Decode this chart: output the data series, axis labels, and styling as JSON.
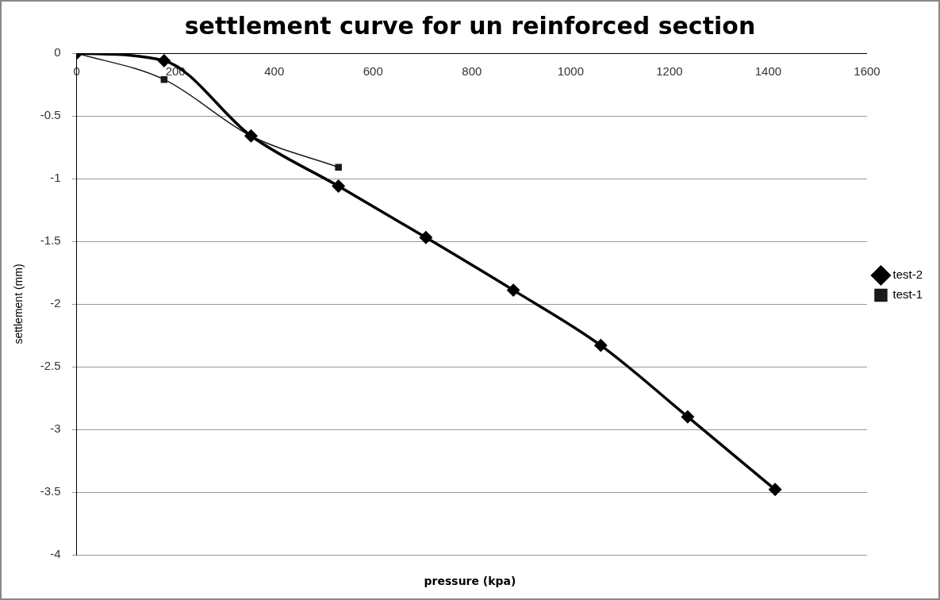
{
  "chart_data": {
    "type": "line",
    "title": "settlement curve for un reinforced section",
    "xlabel": "pressure (kpa)",
    "ylabel": "settlement (mm)",
    "xlim": [
      0,
      1600
    ],
    "xticks": [
      0,
      200,
      400,
      600,
      800,
      1000,
      1200,
      1400,
      1600
    ],
    "ylim": [
      -4,
      0
    ],
    "yticks": [
      -4,
      -3.5,
      -3,
      -2.5,
      -2,
      -1.5,
      -1,
      -0.5,
      0
    ],
    "grid": "y",
    "legend": "right",
    "series": [
      {
        "name": "test-2",
        "color": "#000000",
        "marker": "diamond",
        "x": [
          0,
          177,
          353,
          530,
          707,
          884,
          1061,
          1237,
          1414
        ],
        "values": [
          0,
          -0.06,
          -0.66,
          -1.06,
          -1.47,
          -1.89,
          -2.33,
          -2.9,
          -3.48
        ]
      },
      {
        "name": "test-1",
        "color": "#1a1a1a",
        "marker": "square",
        "x": [
          0,
          177,
          353,
          530
        ],
        "values": [
          0,
          -0.21,
          -0.66,
          -0.91
        ]
      }
    ]
  }
}
